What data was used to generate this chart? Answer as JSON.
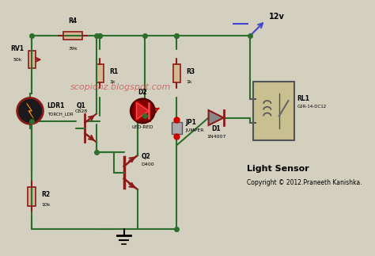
{
  "bg_color": "#d4d0c0",
  "wire_color": "#2d6e2d",
  "component_color": "#8b1a1a",
  "text_color": "#000000",
  "title": "Light Sensor",
  "subtitle": "Copyright © 2012.Praneeth Kanishka.",
  "watermark": "scopionz.blogspot.com",
  "watermark_color": "#cc4444",
  "supply_label": "12v",
  "components": {
    "R4": {
      "label": "R4",
      "value": "39k"
    },
    "RV1": {
      "label": "RV1",
      "value": "50k"
    },
    "R1": {
      "label": "R1",
      "value": "1k"
    },
    "R3": {
      "label": "R3",
      "value": "1k"
    },
    "R2": {
      "label": "R2",
      "value": "10k"
    },
    "D2": {
      "label": "D2",
      "sublabel": "LED-RED"
    },
    "D1": {
      "label": "D1",
      "sublabel": "1N4007"
    },
    "JP1": {
      "label": "JP1",
      "sublabel": "JUMPER"
    },
    "LDR1": {
      "label": "LDR1",
      "sublabel": "TORCH_LDR"
    },
    "Q1": {
      "label": "Q1",
      "sublabel": "C828"
    },
    "Q2": {
      "label": "Q2",
      "sublabel": "D400"
    },
    "RL1": {
      "label": "RL1",
      "sublabel": "G2R-14-DC12"
    }
  }
}
